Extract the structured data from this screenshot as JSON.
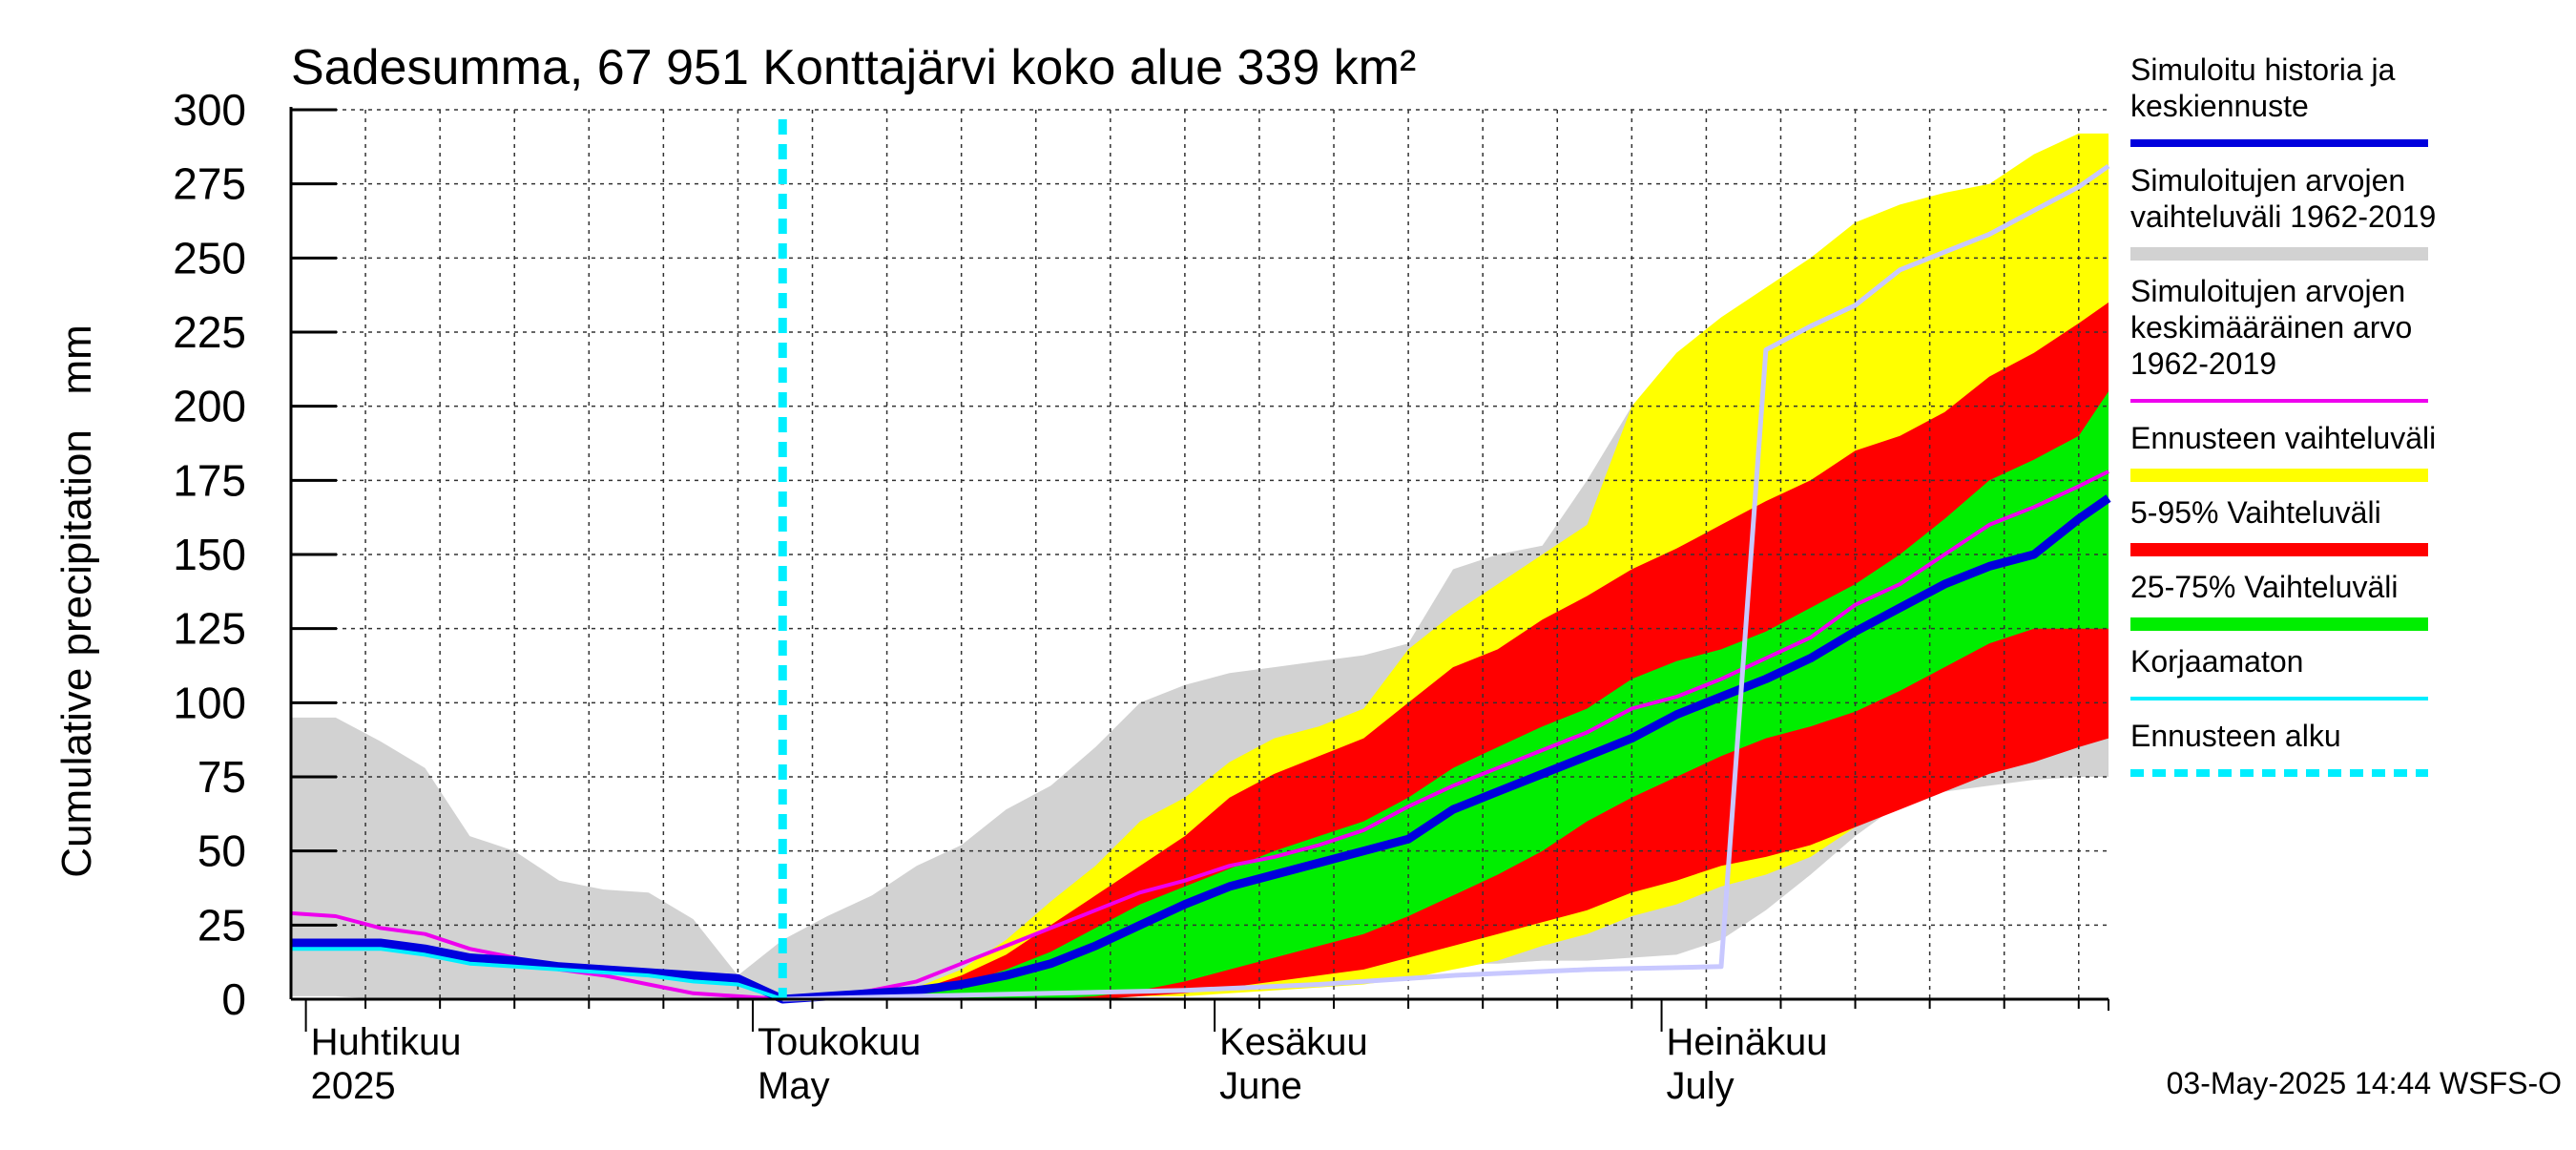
{
  "chart_data": {
    "type": "area",
    "title": "Sadesumma, 67 951 Konttajärvi koko alue 339 km²",
    "ylabel": "Cumulative precipitation   mm",
    "xlabel": "",
    "ylim": [
      0,
      300
    ],
    "yticks": [
      0,
      25,
      50,
      75,
      100,
      125,
      150,
      175,
      200,
      225,
      250,
      275,
      300
    ],
    "xlim": [
      "2025-03-31",
      "2025-07-31"
    ],
    "grid": true,
    "forecast_start": "2025-05-03",
    "month_labels": [
      {
        "date": "2025-04-01",
        "line1": "Huhtikuu",
        "line2": "2025"
      },
      {
        "date": "2025-05-01",
        "line1": "Toukokuu",
        "line2": "May"
      },
      {
        "date": "2025-06-01",
        "line1": "Kesäkuu",
        "line2": "June"
      },
      {
        "date": "2025-07-01",
        "line1": "Heinäkuu",
        "line2": "July"
      }
    ],
    "footer": "03-May-2025 14:44 WSFS-O",
    "legend_position": "right",
    "legend": [
      {
        "label": "Simuloitu historia ja keskiennuste",
        "lines": [
          "Simuloitu historia ja",
          "keskiennuste"
        ],
        "color": "#0000dd",
        "style": "line"
      },
      {
        "label": "Simuloitujen arvojen vaihteluväli 1962-2019",
        "lines": [
          "Simuloitujen arvojen",
          "vaihteluväli 1962-2019"
        ],
        "color": "#d2d2d2",
        "style": "band"
      },
      {
        "label": "Simuloitujen arvojen keskimääräinen arvo 1962-2019",
        "lines": [
          "Simuloitujen arvojen",
          "keskimääräinen arvo",
          "   1962-2019"
        ],
        "color": "#ee00ee",
        "style": "line"
      },
      {
        "label": "Ennusteen vaihteluväli",
        "lines": [
          "Ennusteen vaihteluväli"
        ],
        "color": "#ffff00",
        "style": "band"
      },
      {
        "label": "5-95% Vaihteluväli",
        "lines": [
          "5-95% Vaihteluväli"
        ],
        "color": "#ff0000",
        "style": "band"
      },
      {
        "label": "25-75% Vaihteluväli",
        "lines": [
          "25-75% Vaihteluväli"
        ],
        "color": "#00ee00",
        "style": "band"
      },
      {
        "label": "Korjaamaton",
        "lines": [
          "Korjaamaton"
        ],
        "color": "#00eeff",
        "style": "line"
      },
      {
        "label": "Ennusteen alku",
        "lines": [
          "Ennusteen alku"
        ],
        "color": "#00eeff",
        "style": "dashed"
      }
    ],
    "series": [
      {
        "name": "Simuloitujen arvojen vaihteluväli 1962-2019",
        "kind": "band",
        "color": "#d2d2d2",
        "x": [
          "2025-03-31",
          "2025-04-03",
          "2025-04-06",
          "2025-04-09",
          "2025-04-12",
          "2025-04-15",
          "2025-04-18",
          "2025-04-21",
          "2025-04-24",
          "2025-04-27",
          "2025-04-30",
          "2025-05-03",
          "2025-05-06",
          "2025-05-09",
          "2025-05-12",
          "2025-05-15",
          "2025-05-18",
          "2025-05-21",
          "2025-05-24",
          "2025-05-27",
          "2025-05-30",
          "2025-06-02",
          "2025-06-05",
          "2025-06-08",
          "2025-06-11",
          "2025-06-14",
          "2025-06-17",
          "2025-06-20",
          "2025-06-23",
          "2025-06-26",
          "2025-06-29",
          "2025-07-02",
          "2025-07-05",
          "2025-07-08",
          "2025-07-11",
          "2025-07-14",
          "2025-07-17",
          "2025-07-20",
          "2025-07-23",
          "2025-07-26",
          "2025-07-29",
          "2025-07-31"
        ],
        "upper": [
          95,
          95,
          87,
          78,
          55,
          50,
          40,
          37,
          36,
          27,
          8,
          20,
          28,
          35,
          45,
          52,
          64,
          72,
          85,
          100,
          106,
          110,
          112,
          114,
          116,
          120,
          145,
          150,
          153,
          175,
          200,
          212,
          218,
          220,
          222,
          224,
          225,
          226,
          227,
          228,
          229,
          230
        ],
        "lower": [
          1,
          1,
          0,
          0,
          0,
          0,
          0,
          0,
          0,
          0,
          0,
          0,
          0,
          0,
          0,
          0,
          0,
          0,
          1,
          2,
          3,
          5,
          6,
          8,
          10,
          11,
          12,
          12,
          13,
          13,
          14,
          15,
          20,
          30,
          42,
          55,
          66,
          70,
          72,
          74,
          75,
          75
        ]
      },
      {
        "name": "Ennusteen vaihteluväli",
        "kind": "band",
        "color": "#ffff00",
        "x": [
          "2025-05-03",
          "2025-05-06",
          "2025-05-09",
          "2025-05-12",
          "2025-05-15",
          "2025-05-18",
          "2025-05-21",
          "2025-05-24",
          "2025-05-27",
          "2025-05-30",
          "2025-06-02",
          "2025-06-05",
          "2025-06-08",
          "2025-06-11",
          "2025-06-14",
          "2025-06-17",
          "2025-06-20",
          "2025-06-23",
          "2025-06-26",
          "2025-06-29",
          "2025-07-02",
          "2025-07-05",
          "2025-07-08",
          "2025-07-11",
          "2025-07-14",
          "2025-07-17",
          "2025-07-20",
          "2025-07-23",
          "2025-07-26",
          "2025-07-29",
          "2025-07-31"
        ],
        "upper": [
          0,
          1,
          2,
          4,
          10,
          20,
          33,
          45,
          60,
          68,
          80,
          88,
          92,
          98,
          118,
          130,
          140,
          150,
          160,
          200,
          218,
          230,
          240,
          250,
          262,
          268,
          272,
          275,
          285,
          292,
          292
        ],
        "lower": [
          0,
          0,
          0,
          0,
          0,
          0,
          0,
          0,
          1,
          1,
          2,
          3,
          4,
          5,
          7,
          10,
          13,
          18,
          22,
          28,
          32,
          38,
          42,
          48,
          58,
          68,
          72,
          78,
          84,
          88,
          88
        ]
      },
      {
        "name": "5-95% Vaihteluväli",
        "kind": "band",
        "color": "#ff0000",
        "x": [
          "2025-05-03",
          "2025-05-06",
          "2025-05-09",
          "2025-05-12",
          "2025-05-15",
          "2025-05-18",
          "2025-05-21",
          "2025-05-24",
          "2025-05-27",
          "2025-05-30",
          "2025-06-02",
          "2025-06-05",
          "2025-06-08",
          "2025-06-11",
          "2025-06-14",
          "2025-06-17",
          "2025-06-20",
          "2025-06-23",
          "2025-06-26",
          "2025-06-29",
          "2025-07-02",
          "2025-07-05",
          "2025-07-08",
          "2025-07-11",
          "2025-07-14",
          "2025-07-17",
          "2025-07-20",
          "2025-07-23",
          "2025-07-26",
          "2025-07-29",
          "2025-07-31"
        ],
        "upper": [
          0,
          1,
          2,
          3,
          8,
          15,
          25,
          35,
          45,
          55,
          68,
          76,
          82,
          88,
          100,
          112,
          118,
          128,
          136,
          145,
          152,
          160,
          168,
          175,
          185,
          190,
          198,
          210,
          218,
          228,
          235
        ],
        "lower": [
          0,
          0,
          0,
          0,
          0,
          0,
          0,
          0,
          1,
          2,
          4,
          6,
          8,
          10,
          14,
          18,
          22,
          26,
          30,
          36,
          40,
          45,
          48,
          52,
          58,
          64,
          70,
          76,
          80,
          85,
          88
        ]
      },
      {
        "name": "25-75% Vaihteluväli",
        "kind": "band",
        "color": "#00ee00",
        "x": [
          "2025-05-03",
          "2025-05-06",
          "2025-05-09",
          "2025-05-12",
          "2025-05-15",
          "2025-05-18",
          "2025-05-21",
          "2025-05-24",
          "2025-05-27",
          "2025-05-30",
          "2025-06-02",
          "2025-06-05",
          "2025-06-08",
          "2025-06-11",
          "2025-06-14",
          "2025-06-17",
          "2025-06-20",
          "2025-06-23",
          "2025-06-26",
          "2025-06-29",
          "2025-07-02",
          "2025-07-05",
          "2025-07-08",
          "2025-07-11",
          "2025-07-14",
          "2025-07-17",
          "2025-07-20",
          "2025-07-23",
          "2025-07-26",
          "2025-07-29",
          "2025-07-31"
        ],
        "upper": [
          0,
          0,
          1,
          2,
          5,
          10,
          16,
          24,
          32,
          38,
          44,
          50,
          55,
          60,
          68,
          78,
          85,
          92,
          98,
          108,
          114,
          118,
          124,
          132,
          140,
          150,
          162,
          175,
          182,
          190,
          205
        ],
        "lower": [
          0,
          0,
          0,
          0,
          0,
          0,
          0,
          1,
          3,
          6,
          10,
          14,
          18,
          22,
          28,
          35,
          42,
          50,
          60,
          68,
          75,
          82,
          88,
          92,
          97,
          104,
          112,
          120,
          125,
          125,
          125
        ]
      },
      {
        "name": "Simuloitujen arvojen keskimääräinen arvo 1962-2019",
        "kind": "line",
        "color": "#ee00ee",
        "x": [
          "2025-03-31",
          "2025-04-03",
          "2025-04-06",
          "2025-04-09",
          "2025-04-12",
          "2025-04-15",
          "2025-04-18",
          "2025-04-21",
          "2025-04-24",
          "2025-04-27",
          "2025-04-30",
          "2025-05-03",
          "2025-05-06",
          "2025-05-09",
          "2025-05-12",
          "2025-05-15",
          "2025-05-18",
          "2025-05-21",
          "2025-05-24",
          "2025-05-27",
          "2025-05-30",
          "2025-06-02",
          "2025-06-05",
          "2025-06-08",
          "2025-06-11",
          "2025-06-14",
          "2025-06-17",
          "2025-06-20",
          "2025-06-23",
          "2025-06-26",
          "2025-06-29",
          "2025-07-02",
          "2025-07-05",
          "2025-07-08",
          "2025-07-11",
          "2025-07-14",
          "2025-07-17",
          "2025-07-20",
          "2025-07-23",
          "2025-07-26",
          "2025-07-29",
          "2025-07-31"
        ],
        "y": [
          29,
          28,
          24,
          22,
          17,
          14,
          10,
          8,
          5,
          2,
          1,
          0,
          1,
          3,
          6,
          12,
          18,
          24,
          30,
          36,
          40,
          45,
          48,
          52,
          57,
          65,
          72,
          78,
          84,
          90,
          98,
          102,
          108,
          115,
          122,
          133,
          140,
          150,
          160,
          166,
          173,
          178
        ]
      },
      {
        "name": "Simuloitu historia ja keskiennuste",
        "kind": "line",
        "color": "#0000dd",
        "x": [
          "2025-03-31",
          "2025-04-03",
          "2025-04-06",
          "2025-04-09",
          "2025-04-12",
          "2025-04-15",
          "2025-04-18",
          "2025-04-21",
          "2025-04-24",
          "2025-04-27",
          "2025-04-30",
          "2025-05-03",
          "2025-05-06",
          "2025-05-09",
          "2025-05-12",
          "2025-05-15",
          "2025-05-18",
          "2025-05-21",
          "2025-05-24",
          "2025-05-27",
          "2025-05-30",
          "2025-06-02",
          "2025-06-05",
          "2025-06-08",
          "2025-06-11",
          "2025-06-14",
          "2025-06-17",
          "2025-06-20",
          "2025-06-23",
          "2025-06-26",
          "2025-06-29",
          "2025-07-02",
          "2025-07-05",
          "2025-07-08",
          "2025-07-11",
          "2025-07-14",
          "2025-07-17",
          "2025-07-20",
          "2025-07-23",
          "2025-07-26",
          "2025-07-29",
          "2025-07-31"
        ],
        "y": [
          19,
          19,
          19,
          17,
          14,
          13,
          11,
          10,
          9,
          8,
          7,
          0,
          1,
          2,
          3,
          5,
          8,
          12,
          18,
          25,
          32,
          38,
          42,
          46,
          50,
          54,
          64,
          70,
          76,
          82,
          88,
          96,
          102,
          108,
          115,
          124,
          132,
          140,
          146,
          150,
          162,
          169
        ]
      },
      {
        "name": "Korjaamaton",
        "kind": "line",
        "color": "#00eeff",
        "x": [
          "2025-03-31",
          "2025-04-03",
          "2025-04-06",
          "2025-04-09",
          "2025-04-12",
          "2025-04-15",
          "2025-04-18",
          "2025-04-21",
          "2025-04-24",
          "2025-04-27",
          "2025-04-30",
          "2025-05-03"
        ],
        "y": [
          17,
          17,
          17,
          15,
          12,
          11,
          10,
          9,
          8,
          6,
          5,
          0
        ]
      },
      {
        "name": "Simuloitu vertailu",
        "kind": "line",
        "color": "#c8c8ff",
        "x": [
          "2025-05-03",
          "2025-05-12",
          "2025-05-21",
          "2025-05-30",
          "2025-06-08",
          "2025-06-17",
          "2025-06-26",
          "2025-07-05",
          "2025-07-08",
          "2025-07-11",
          "2025-07-14",
          "2025-07-17",
          "2025-07-20",
          "2025-07-23",
          "2025-07-26",
          "2025-07-29",
          "2025-07-31"
        ],
        "y": [
          0,
          1,
          2,
          3,
          5,
          8,
          10,
          11,
          219,
          227,
          234,
          246,
          252,
          258,
          266,
          274,
          281
        ]
      }
    ]
  }
}
